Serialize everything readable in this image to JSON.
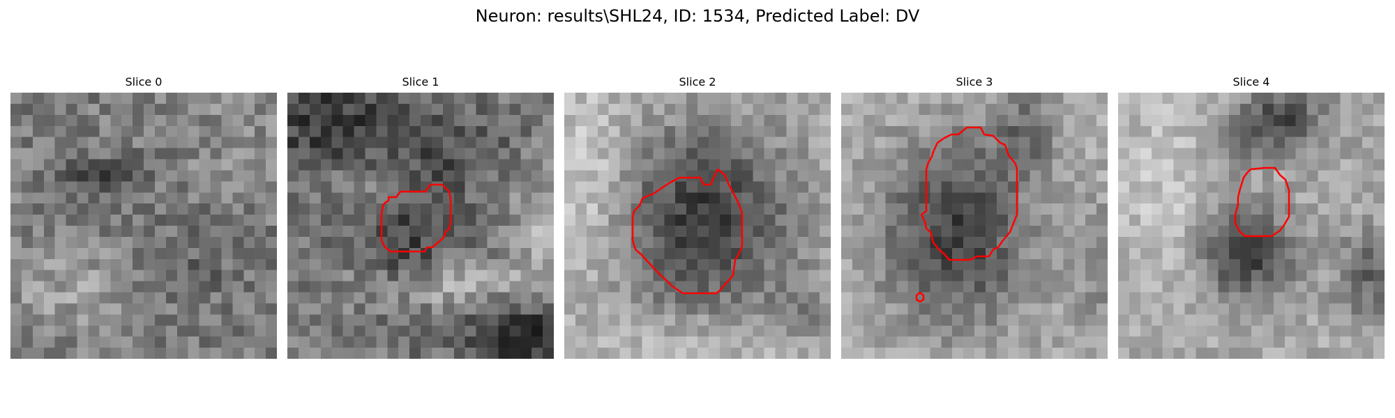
{
  "title": "Neuron: results\\SHL24, ID: 1534, Predicted Label: DV",
  "contour_color": "#ff0000",
  "slices": [
    {
      "label": "Slice 0",
      "has_contour": false
    },
    {
      "label": "Slice 1",
      "has_contour": true
    },
    {
      "label": "Slice 2",
      "has_contour": true
    },
    {
      "label": "Slice 3",
      "has_contour": true
    },
    {
      "label": "Slice 4",
      "has_contour": true
    }
  ]
}
